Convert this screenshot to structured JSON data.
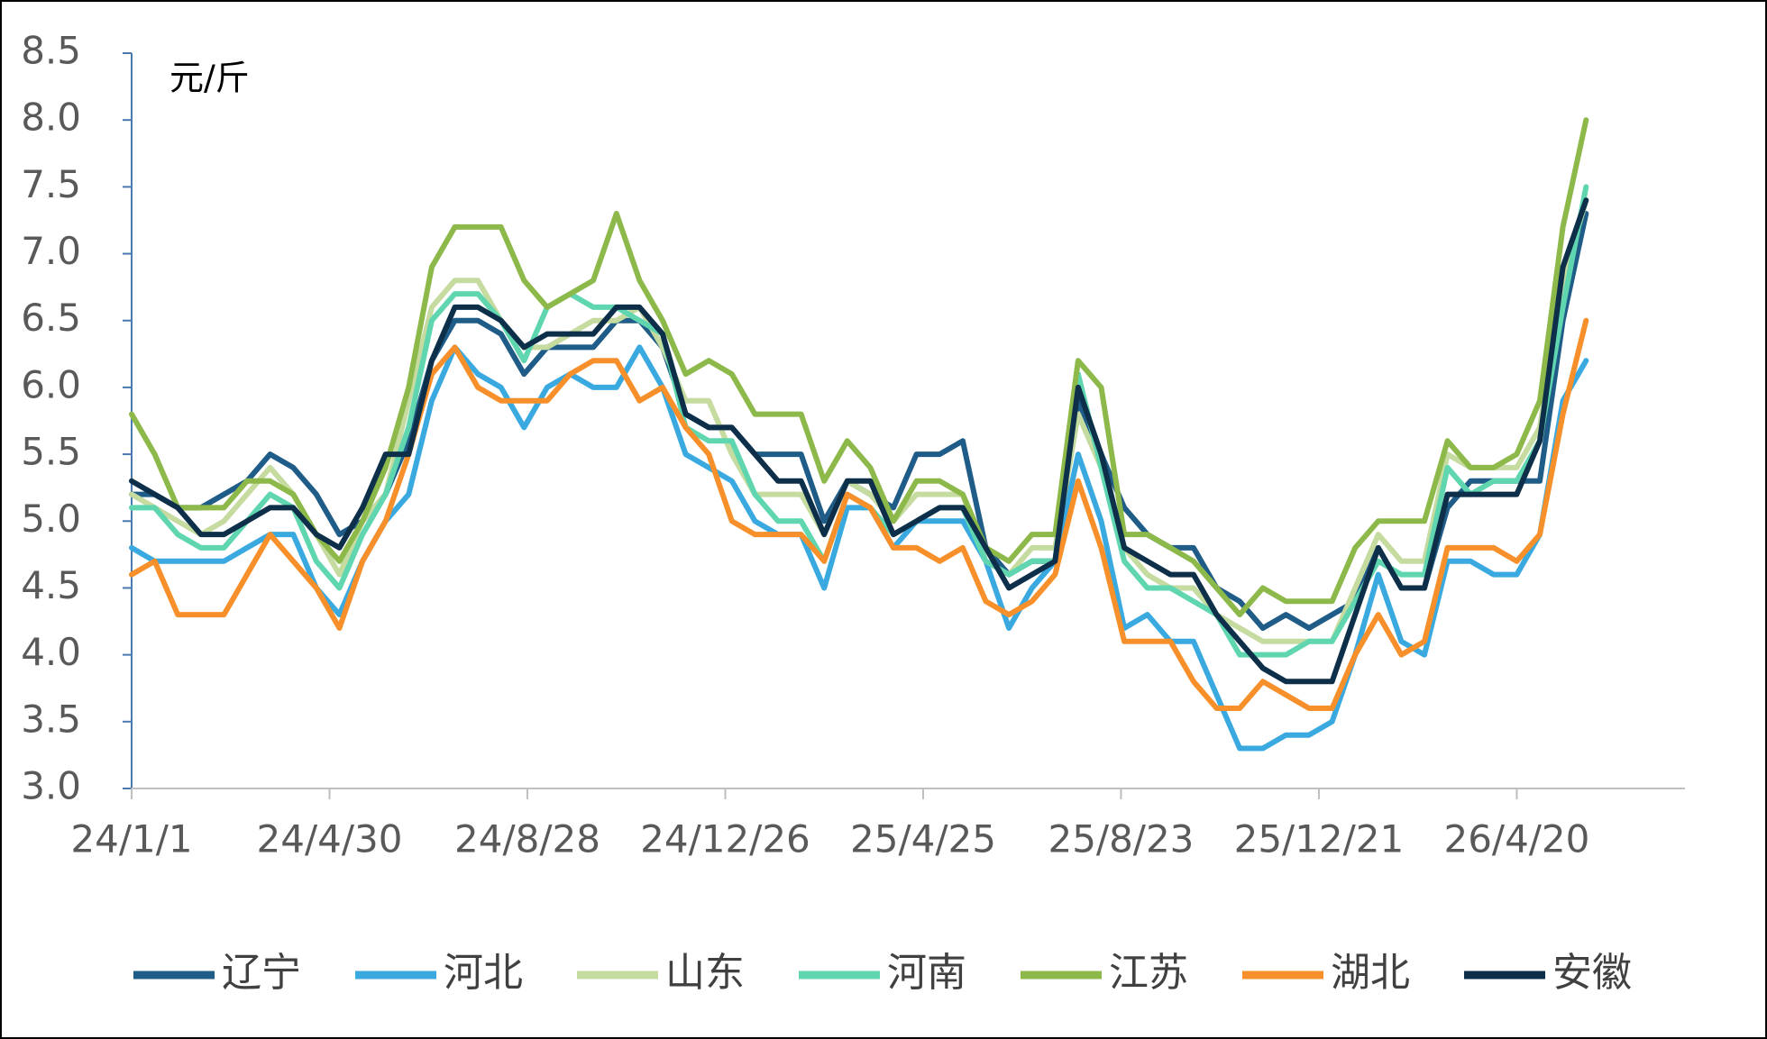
{
  "chart_data": {
    "type": "line",
    "ylabel": "元/斤",
    "x": [
      "24/1/1",
      "24/1/15",
      "24/1/29",
      "24/2/12",
      "24/2/26",
      "24/3/11",
      "24/3/25",
      "24/4/8",
      "24/4/22",
      "24/5/6",
      "24/5/20",
      "24/6/3",
      "24/6/17",
      "24/7/1",
      "24/7/15",
      "24/7/29",
      "24/8/12",
      "24/8/26",
      "24/9/9",
      "24/9/23",
      "24/10/7",
      "24/10/21",
      "24/11/4",
      "24/11/18",
      "24/12/2",
      "24/12/16",
      "24/12/30",
      "25/1/13",
      "25/1/27",
      "25/2/10",
      "25/2/24",
      "25/3/10",
      "25/3/24",
      "25/4/7",
      "25/4/21",
      "25/5/5",
      "25/5/19",
      "25/6/2",
      "25/6/16",
      "25/6/30",
      "25/7/14",
      "25/7/28",
      "25/8/11",
      "25/8/25",
      "25/9/8",
      "25/9/22",
      "25/10/6",
      "25/10/20",
      "25/11/3",
      "25/11/17",
      "25/12/1",
      "25/12/15",
      "25/12/29",
      "26/1/12",
      "26/1/26",
      "26/2/9",
      "26/2/23",
      "26/3/9",
      "26/3/23",
      "26/4/6",
      "26/4/20",
      "26/5/4",
      "26/5/18",
      "26/6/1"
    ],
    "xlim": [
      "24/1/1",
      "26/7/31"
    ],
    "xticks": [
      "24/1/1",
      "24/4/30",
      "24/8/28",
      "24/12/26",
      "25/4/25",
      "25/8/23",
      "25/12/21",
      "26/4/20"
    ],
    "ylim": [
      3,
      8.5
    ],
    "yticks": [
      {
        "value": 3,
        "label": "3.0"
      },
      3.5,
      {
        "value": 4,
        "label": "4.0"
      },
      4.5,
      {
        "value": 5,
        "label": "5.0"
      },
      5.5,
      {
        "value": 6,
        "label": "6.0"
      },
      6.5,
      {
        "value": 7,
        "label": "7.0"
      },
      7.5,
      {
        "value": 8,
        "label": "8.0"
      },
      8.5
    ],
    "series": [
      {
        "name": "辽宁",
        "color": "#1f5c87",
        "values": [
          5.2,
          5.2,
          5.1,
          5.1,
          5.2,
          5.3,
          5.5,
          5.4,
          5.2,
          4.9,
          5.0,
          5.2,
          5.6,
          6.2,
          6.5,
          6.5,
          6.4,
          6.1,
          6.3,
          6.3,
          6.3,
          6.5,
          6.5,
          6.3,
          5.8,
          5.7,
          5.7,
          5.5,
          5.5,
          5.5,
          5.0,
          5.3,
          5.2,
          5.1,
          5.5,
          5.5,
          5.6,
          4.8,
          4.6,
          4.7,
          4.7,
          5.9,
          5.5,
          5.1,
          4.9,
          4.8,
          4.8,
          4.5,
          4.4,
          4.2,
          4.3,
          4.2,
          4.3,
          4.4,
          4.8,
          4.5,
          4.5,
          5.1,
          5.3,
          5.3,
          5.3,
          5.3,
          6.5,
          7.3
        ]
      },
      {
        "name": "河北",
        "color": "#3aa9e0",
        "values": [
          4.8,
          4.7,
          4.7,
          4.7,
          4.7,
          4.8,
          4.9,
          4.9,
          4.5,
          4.3,
          4.7,
          5.0,
          5.2,
          5.9,
          6.3,
          6.1,
          6.0,
          5.7,
          6.0,
          6.1,
          6.0,
          6.0,
          6.3,
          6.0,
          5.5,
          5.4,
          5.3,
          5.0,
          4.9,
          4.9,
          4.5,
          5.1,
          5.1,
          4.8,
          5.0,
          5.0,
          5.0,
          4.7,
          4.2,
          4.5,
          4.7,
          5.5,
          5.0,
          4.2,
          4.3,
          4.1,
          4.1,
          3.7,
          3.3,
          3.3,
          3.4,
          3.4,
          3.5,
          4.0,
          4.6,
          4.1,
          4.0,
          4.7,
          4.7,
          4.6,
          4.6,
          4.9,
          5.9,
          6.2
        ]
      },
      {
        "name": "山东",
        "color": "#c5dba0",
        "values": [
          5.2,
          5.1,
          5.0,
          4.9,
          5.0,
          5.2,
          5.4,
          5.2,
          4.9,
          4.6,
          5.0,
          5.2,
          5.9,
          6.6,
          6.8,
          6.8,
          6.5,
          6.3,
          6.3,
          6.4,
          6.5,
          6.5,
          6.6,
          6.3,
          5.9,
          5.9,
          5.5,
          5.2,
          5.2,
          5.2,
          4.9,
          5.3,
          5.2,
          5.0,
          5.2,
          5.2,
          5.2,
          4.7,
          4.6,
          4.8,
          4.8,
          5.8,
          5.4,
          4.8,
          4.6,
          4.5,
          4.5,
          4.3,
          4.2,
          4.1,
          4.1,
          4.1,
          4.1,
          4.5,
          4.9,
          4.7,
          4.7,
          5.5,
          5.4,
          5.4,
          5.4,
          5.7,
          6.8,
          7.4
        ]
      },
      {
        "name": "河南",
        "color": "#5fd6b0",
        "values": [
          5.1,
          5.1,
          4.9,
          4.8,
          4.8,
          5.0,
          5.2,
          5.1,
          4.7,
          4.5,
          4.9,
          5.2,
          5.7,
          6.5,
          6.7,
          6.7,
          6.5,
          6.2,
          6.6,
          6.7,
          6.6,
          6.6,
          6.5,
          6.4,
          5.7,
          5.6,
          5.6,
          5.2,
          5.0,
          5.0,
          4.7,
          5.2,
          5.1,
          4.9,
          5.0,
          5.1,
          5.1,
          4.7,
          4.6,
          4.7,
          4.7,
          6.1,
          5.4,
          4.7,
          4.5,
          4.5,
          4.4,
          4.3,
          4.0,
          4.0,
          4.0,
          4.1,
          4.1,
          4.4,
          4.7,
          4.6,
          4.6,
          5.4,
          5.2,
          5.3,
          5.3,
          5.6,
          6.6,
          7.5
        ]
      },
      {
        "name": "江苏",
        "color": "#8db84a",
        "values": [
          5.8,
          5.5,
          5.1,
          5.1,
          5.1,
          5.3,
          5.3,
          5.2,
          4.9,
          4.7,
          5.0,
          5.4,
          6.0,
          6.9,
          7.2,
          7.2,
          7.2,
          6.8,
          6.6,
          6.7,
          6.8,
          7.3,
          6.8,
          6.5,
          6.1,
          6.2,
          6.1,
          5.8,
          5.8,
          5.8,
          5.3,
          5.6,
          5.4,
          5.0,
          5.3,
          5.3,
          5.2,
          4.8,
          4.7,
          4.9,
          4.9,
          6.2,
          6.0,
          4.9,
          4.9,
          4.8,
          4.7,
          4.5,
          4.3,
          4.5,
          4.4,
          4.4,
          4.4,
          4.8,
          5.0,
          5.0,
          5.0,
          5.6,
          5.4,
          5.4,
          5.5,
          5.9,
          7.2,
          8.0
        ]
      },
      {
        "name": "湖北",
        "color": "#f7902a",
        "values": [
          4.6,
          4.7,
          4.3,
          4.3,
          4.3,
          4.6,
          4.9,
          4.7,
          4.5,
          4.2,
          4.7,
          5.0,
          5.5,
          6.1,
          6.3,
          6.0,
          5.9,
          5.9,
          5.9,
          6.1,
          6.2,
          6.2,
          5.9,
          6.0,
          5.7,
          5.5,
          5.0,
          4.9,
          4.9,
          4.9,
          4.7,
          5.2,
          5.1,
          4.8,
          4.8,
          4.7,
          4.8,
          4.4,
          4.3,
          4.4,
          4.6,
          5.3,
          4.8,
          4.1,
          4.1,
          4.1,
          3.8,
          3.6,
          3.6,
          3.8,
          3.7,
          3.6,
          3.6,
          4.0,
          4.3,
          4.0,
          4.1,
          4.8,
          4.8,
          4.8,
          4.7,
          4.9,
          5.8,
          6.5
        ]
      },
      {
        "name": "安徽",
        "color": "#0d2f4a",
        "values": [
          5.3,
          5.2,
          5.1,
          4.9,
          4.9,
          5.0,
          5.1,
          5.1,
          4.9,
          4.8,
          5.1,
          5.5,
          5.5,
          6.2,
          6.6,
          6.6,
          6.5,
          6.3,
          6.4,
          6.4,
          6.4,
          6.6,
          6.6,
          6.4,
          5.8,
          5.7,
          5.7,
          5.5,
          5.3,
          5.3,
          4.9,
          5.3,
          5.3,
          4.9,
          5.0,
          5.1,
          5.1,
          4.8,
          4.5,
          4.6,
          4.7,
          6.0,
          5.5,
          4.8,
          4.7,
          4.6,
          4.6,
          4.3,
          4.1,
          3.9,
          3.8,
          3.8,
          3.8,
          4.3,
          4.8,
          4.5,
          4.5,
          5.2,
          5.2,
          5.2,
          5.2,
          5.6,
          6.9,
          7.4
        ]
      }
    ]
  }
}
